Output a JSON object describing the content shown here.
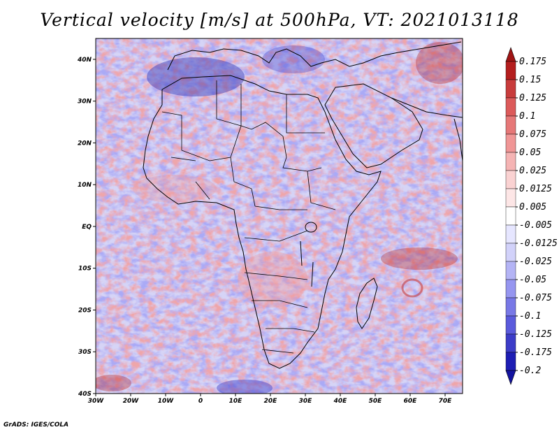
{
  "title": "Vertical velocity [m/s] at 500hPa, VT: 2021013118",
  "credit": "GrADS: IGES/COLA",
  "map": {
    "lon_range": [
      -30,
      75
    ],
    "lat_range": [
      -40,
      45
    ],
    "lat_ticks": [
      {
        "value": 40,
        "label": "40N"
      },
      {
        "value": 30,
        "label": "30N"
      },
      {
        "value": 20,
        "label": "20N"
      },
      {
        "value": 10,
        "label": "10N"
      },
      {
        "value": 0,
        "label": "EQ"
      },
      {
        "value": -10,
        "label": "10S"
      },
      {
        "value": -20,
        "label": "20S"
      },
      {
        "value": -30,
        "label": "30S"
      },
      {
        "value": -40,
        "label": "40S"
      }
    ],
    "lon_ticks": [
      {
        "value": -30,
        "label": "30W"
      },
      {
        "value": -20,
        "label": "20W"
      },
      {
        "value": -10,
        "label": "10W"
      },
      {
        "value": 0,
        "label": "0"
      },
      {
        "value": 10,
        "label": "10E"
      },
      {
        "value": 20,
        "label": "20E"
      },
      {
        "value": 30,
        "label": "30E"
      },
      {
        "value": 40,
        "label": "40E"
      },
      {
        "value": 50,
        "label": "50E"
      },
      {
        "value": 60,
        "label": "60E"
      },
      {
        "value": 70,
        "label": "70E"
      }
    ]
  },
  "colorbar": {
    "levels": [
      "0.175",
      "0.15",
      "0.125",
      "0.1",
      "0.075",
      "0.05",
      "0.025",
      "0.0125",
      "0.005",
      "-0.005",
      "-0.0125",
      "-0.025",
      "-0.05",
      "-0.075",
      "-0.1",
      "-0.125",
      "-0.175",
      "-0.2"
    ],
    "colors": [
      "#b41e1e",
      "#c83c3c",
      "#dc5a5a",
      "#e67878",
      "#f09696",
      "#f5b4b4",
      "#fad2d2",
      "#fde6e6",
      "#ffffff",
      "#e6e6ff",
      "#d2d2fa",
      "#b4b4f5",
      "#9696f0",
      "#7878e6",
      "#5a5adc",
      "#3c3cc8",
      "#1e1eb4"
    ],
    "top_color": "#a01414",
    "bottom_color": "#1414a0"
  },
  "colors": {
    "coast": "#000000",
    "background": "#ffffff"
  }
}
